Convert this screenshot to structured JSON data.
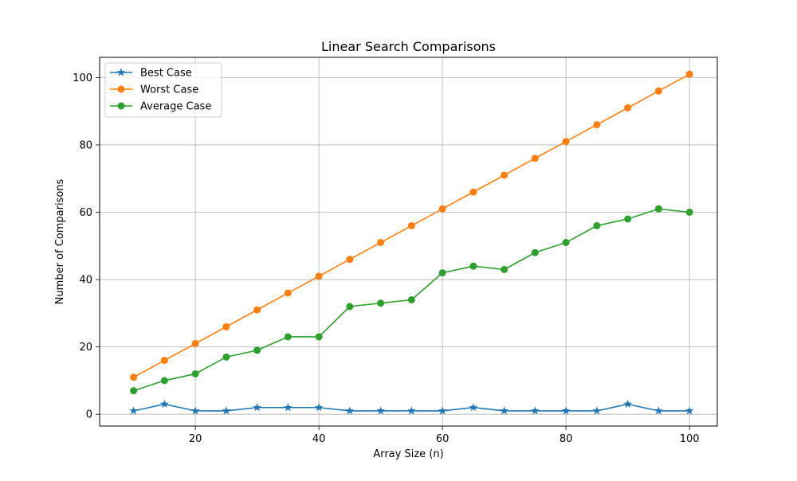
{
  "chart_data": {
    "type": "line",
    "title": "Linear Search Comparisons",
    "xlabel": "Array Size (n)",
    "ylabel": "Number of Comparisons",
    "xlim": [
      4.5,
      104.5
    ],
    "ylim": [
      -3.5,
      106.0
    ],
    "xticks": [
      20,
      40,
      60,
      80,
      100
    ],
    "yticks": [
      0,
      20,
      40,
      60,
      80,
      100
    ],
    "grid": true,
    "legend_position": "top-left",
    "x": [
      10,
      15,
      20,
      25,
      30,
      35,
      40,
      45,
      50,
      55,
      60,
      65,
      70,
      75,
      80,
      85,
      90,
      95,
      100
    ],
    "series": [
      {
        "name": "Best Case",
        "color": "#1f77b4",
        "marker": "star",
        "values": [
          1,
          3,
          1,
          1,
          2,
          2,
          2,
          1,
          1,
          1,
          1,
          2,
          1,
          1,
          1,
          1,
          3,
          1,
          1
        ]
      },
      {
        "name": "Worst Case",
        "color": "#ff7f0e",
        "marker": "circle",
        "values": [
          11,
          16,
          21,
          26,
          31,
          36,
          41,
          46,
          51,
          56,
          61,
          66,
          71,
          76,
          81,
          86,
          91,
          96,
          101
        ]
      },
      {
        "name": "Average Case",
        "color": "#2ca02c",
        "marker": "circle",
        "values": [
          7,
          10,
          12,
          17,
          19,
          23,
          23,
          32,
          33,
          34,
          42,
          44,
          43,
          48,
          51,
          56,
          58,
          61,
          60
        ]
      }
    ]
  }
}
